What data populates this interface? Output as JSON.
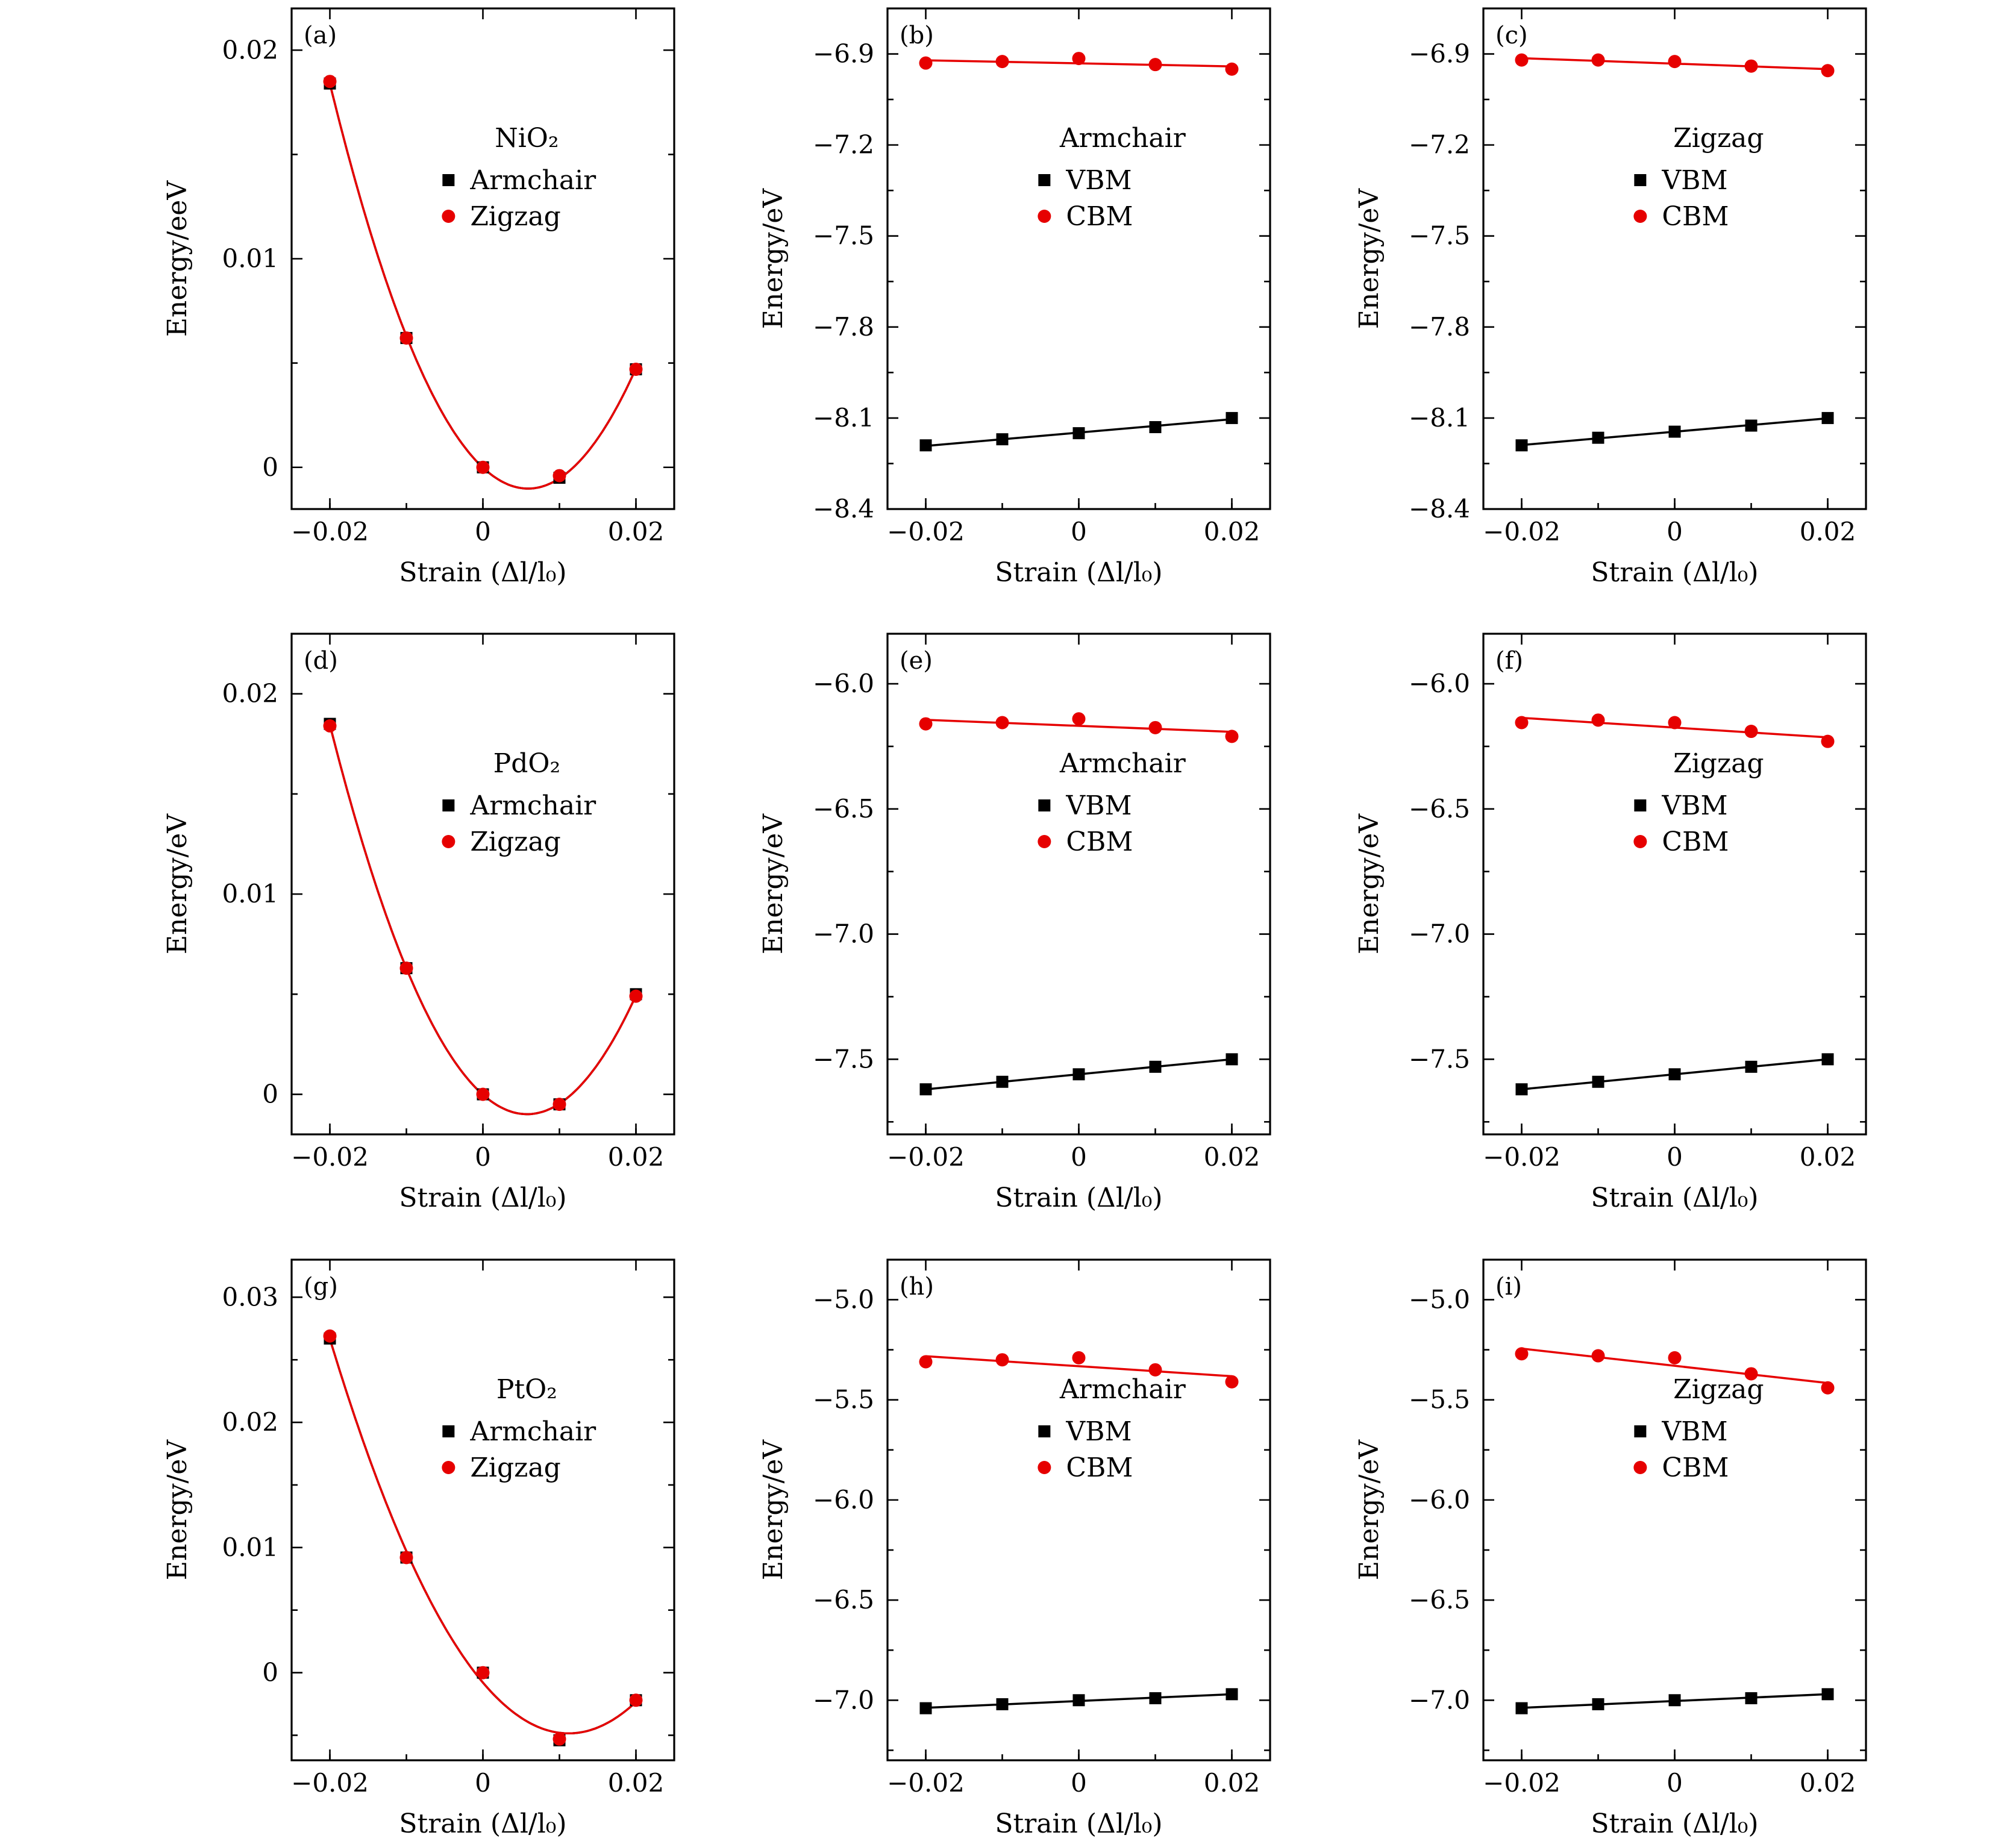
{
  "figure": {
    "x_label": "Strain (Δl/l₀)",
    "colors": {
      "black": "#000000",
      "red": "#e60000"
    }
  },
  "chart_data": [
    {
      "id": "a",
      "panel_label": "(a)",
      "type": "scatter",
      "ylabel": "Energy/eeV",
      "xlabel": "Strain (Δl/l₀)",
      "xlim": [
        -0.025,
        0.025
      ],
      "ylim": [
        -0.002,
        0.022
      ],
      "xticks": [
        -0.02,
        0,
        0.02
      ],
      "xtick_labels": [
        "−0.02",
        "0",
        "0.02"
      ],
      "yticks": [
        0,
        0.01,
        0.02
      ],
      "ytick_labels": [
        "0",
        "0.01",
        "0.02"
      ],
      "legend_title": "NiO₂",
      "series": [
        {
          "name": "Armchair",
          "marker": "square",
          "color": "#000000",
          "x": [
            -0.02,
            -0.01,
            0,
            0.01,
            0.02
          ],
          "y": [
            0.0184,
            0.0062,
            0.0,
            -0.0005,
            0.0047
          ]
        },
        {
          "name": "Zigzag",
          "marker": "circle",
          "color": "#e60000",
          "x": [
            -0.02,
            -0.01,
            0,
            0.01,
            0.02
          ],
          "y": [
            0.0185,
            0.0062,
            0.0,
            -0.0004,
            0.0047
          ]
        }
      ],
      "fit": {
        "kind": "quadratic",
        "color": "#e60000",
        "x": [
          -0.02,
          -0.01,
          0,
          0.01,
          0.02
        ],
        "y": [
          0.01845,
          0.0062,
          0.0,
          -0.00045,
          0.0047
        ]
      }
    },
    {
      "id": "b",
      "panel_label": "(b)",
      "type": "scatter",
      "ylabel": "Energy/eV",
      "xlabel": "Strain (Δl/l₀)",
      "xlim": [
        -0.025,
        0.025
      ],
      "ylim": [
        -8.4,
        -6.75
      ],
      "xticks": [
        -0.02,
        0,
        0.02
      ],
      "xtick_labels": [
        "−0.02",
        "0",
        "0.02"
      ],
      "yticks": [
        -8.4,
        -8.1,
        -7.8,
        -7.5,
        -7.2,
        -6.9
      ],
      "ytick_labels": [
        "−8.4",
        "−8.1",
        "−7.8",
        "−7.5",
        "−7.2",
        "−6.9"
      ],
      "legend_title": "Armchair",
      "series": [
        {
          "name": "VBM",
          "marker": "square",
          "color": "#000000",
          "x": [
            -0.02,
            -0.01,
            0,
            0.01,
            0.02
          ],
          "y": [
            -8.19,
            -8.17,
            -8.15,
            -8.13,
            -8.1
          ]
        },
        {
          "name": "CBM",
          "marker": "circle",
          "color": "#e60000",
          "x": [
            -0.02,
            -0.01,
            0,
            0.01,
            0.02
          ],
          "y": [
            -6.93,
            -6.925,
            -6.915,
            -6.935,
            -6.95
          ]
        }
      ]
    },
    {
      "id": "c",
      "panel_label": "(c)",
      "type": "scatter",
      "ylabel": "Energy/eV",
      "xlabel": "Strain (Δl/l₀)",
      "xlim": [
        -0.025,
        0.025
      ],
      "ylim": [
        -8.4,
        -6.75
      ],
      "xticks": [
        -0.02,
        0,
        0.02
      ],
      "xtick_labels": [
        "−0.02",
        "0",
        "0.02"
      ],
      "yticks": [
        -8.4,
        -8.1,
        -7.8,
        -7.5,
        -7.2,
        -6.9
      ],
      "ytick_labels": [
        "−8.4",
        "−8.1",
        "−7.8",
        "−7.5",
        "−7.2",
        "−6.9"
      ],
      "legend_title": "Zigzag",
      "series": [
        {
          "name": "VBM",
          "marker": "square",
          "color": "#000000",
          "x": [
            -0.02,
            -0.01,
            0,
            0.01,
            0.02
          ],
          "y": [
            -8.19,
            -8.165,
            -8.145,
            -8.125,
            -8.1
          ]
        },
        {
          "name": "CBM",
          "marker": "circle",
          "color": "#e60000",
          "x": [
            -0.02,
            -0.01,
            0,
            0.01,
            0.02
          ],
          "y": [
            -6.92,
            -6.92,
            -6.925,
            -6.94,
            -6.955
          ]
        }
      ]
    },
    {
      "id": "d",
      "panel_label": "(d)",
      "type": "scatter",
      "ylabel": "Energy/eV",
      "xlabel": "Strain (Δl/l₀)",
      "xlim": [
        -0.025,
        0.025
      ],
      "ylim": [
        -0.002,
        0.023
      ],
      "xticks": [
        -0.02,
        0,
        0.02
      ],
      "xtick_labels": [
        "−0.02",
        "0",
        "0.02"
      ],
      "yticks": [
        0,
        0.01,
        0.02
      ],
      "ytick_labels": [
        "0",
        "0.01",
        "0.02"
      ],
      "legend_title": "PdO₂",
      "series": [
        {
          "name": "Armchair",
          "marker": "square",
          "color": "#000000",
          "x": [
            -0.02,
            -0.01,
            0,
            0.01,
            0.02
          ],
          "y": [
            0.0185,
            0.0063,
            0.0,
            -0.0005,
            0.005
          ]
        },
        {
          "name": "Zigzag",
          "marker": "circle",
          "color": "#e60000",
          "x": [
            -0.02,
            -0.01,
            0,
            0.01,
            0.02
          ],
          "y": [
            0.0184,
            0.0063,
            0.0,
            -0.0005,
            0.0049
          ]
        }
      ],
      "fit": {
        "kind": "quadratic",
        "color": "#e60000",
        "x": [
          -0.02,
          -0.01,
          0,
          0.01,
          0.02
        ],
        "y": [
          0.01845,
          0.0063,
          0.0,
          -0.0005,
          0.00495
        ]
      }
    },
    {
      "id": "e",
      "panel_label": "(e)",
      "type": "scatter",
      "ylabel": "Energy/eV",
      "xlabel": "Strain (Δl/l₀)",
      "xlim": [
        -0.025,
        0.025
      ],
      "ylim": [
        -7.8,
        -5.8
      ],
      "xticks": [
        -0.02,
        0,
        0.02
      ],
      "xtick_labels": [
        "−0.02",
        "0",
        "0.02"
      ],
      "yticks": [
        -7.5,
        -7.0,
        -6.5,
        -6.0
      ],
      "ytick_labels": [
        "−7.5",
        "−7.0",
        "−6.5",
        "−6.0"
      ],
      "legend_title": "Armchair",
      "series": [
        {
          "name": "VBM",
          "marker": "square",
          "color": "#000000",
          "x": [
            -0.02,
            -0.01,
            0,
            0.01,
            0.02
          ],
          "y": [
            -7.62,
            -7.59,
            -7.56,
            -7.53,
            -7.5
          ]
        },
        {
          "name": "CBM",
          "marker": "circle",
          "color": "#e60000",
          "x": [
            -0.02,
            -0.01,
            0,
            0.01,
            0.02
          ],
          "y": [
            -6.16,
            -6.155,
            -6.14,
            -6.175,
            -6.21
          ]
        }
      ]
    },
    {
      "id": "f",
      "panel_label": "(f)",
      "type": "scatter",
      "ylabel": "Energy/eV",
      "xlabel": "Strain (Δl/l₀)",
      "xlim": [
        -0.025,
        0.025
      ],
      "ylim": [
        -7.8,
        -5.8
      ],
      "xticks": [
        -0.02,
        0,
        0.02
      ],
      "xtick_labels": [
        "−0.02",
        "0",
        "0.02"
      ],
      "yticks": [
        -7.5,
        -7.0,
        -6.5,
        -6.0
      ],
      "ytick_labels": [
        "−7.5",
        "−7.0",
        "−6.5",
        "−6.0"
      ],
      "legend_title": "Zigzag",
      "series": [
        {
          "name": "VBM",
          "marker": "square",
          "color": "#000000",
          "x": [
            -0.02,
            -0.01,
            0,
            0.01,
            0.02
          ],
          "y": [
            -7.62,
            -7.59,
            -7.56,
            -7.53,
            -7.5
          ]
        },
        {
          "name": "CBM",
          "marker": "circle",
          "color": "#e60000",
          "x": [
            -0.02,
            -0.01,
            0,
            0.01,
            0.02
          ],
          "y": [
            -6.155,
            -6.145,
            -6.155,
            -6.19,
            -6.23
          ]
        }
      ]
    },
    {
      "id": "g",
      "panel_label": "(g)",
      "type": "scatter",
      "ylabel": "Energy/eV",
      "xlabel": "Strain (Δl/l₀)",
      "xlim": [
        -0.025,
        0.025
      ],
      "ylim": [
        -0.007,
        0.033
      ],
      "xticks": [
        -0.02,
        0,
        0.02
      ],
      "xtick_labels": [
        "−0.02",
        "0",
        "0.02"
      ],
      "yticks": [
        0,
        0.01,
        0.02,
        0.03
      ],
      "ytick_labels": [
        "0",
        "0.01",
        "0.02",
        "0.03"
      ],
      "legend_title": "PtO₂",
      "series": [
        {
          "name": "Armchair",
          "marker": "square",
          "color": "#000000",
          "x": [
            -0.02,
            -0.01,
            0,
            0.01,
            0.02
          ],
          "y": [
            0.0267,
            0.0092,
            0.0,
            -0.0054,
            -0.0022
          ]
        },
        {
          "name": "Zigzag",
          "marker": "circle",
          "color": "#e60000",
          "x": [
            -0.02,
            -0.01,
            0,
            0.01,
            0.02
          ],
          "y": [
            0.0269,
            0.0092,
            0.0,
            -0.0053,
            -0.0022
          ]
        }
      ],
      "fit": {
        "kind": "quadratic",
        "color": "#e60000",
        "x": [
          -0.02,
          -0.01,
          0,
          0.01,
          0.02
        ],
        "y": [
          0.0268,
          0.0092,
          0.0,
          -0.00535,
          -0.0022
        ]
      }
    },
    {
      "id": "h",
      "panel_label": "(h)",
      "type": "scatter",
      "ylabel": "Energy/eV",
      "xlabel": "Strain (Δl/l₀)",
      "xlim": [
        -0.025,
        0.025
      ],
      "ylim": [
        -7.3,
        -4.8
      ],
      "xticks": [
        -0.02,
        0,
        0.02
      ],
      "xtick_labels": [
        "−0.02",
        "0",
        "0.02"
      ],
      "yticks": [
        -7.0,
        -6.5,
        -6.0,
        -5.5,
        -5.0
      ],
      "ytick_labels": [
        "−7.0",
        "−6.5",
        "−6.0",
        "−5.5",
        "−5.0"
      ],
      "legend_title": "Armchair",
      "series": [
        {
          "name": "VBM",
          "marker": "square",
          "color": "#000000",
          "x": [
            -0.02,
            -0.01,
            0,
            0.01,
            0.02
          ],
          "y": [
            -7.04,
            -7.02,
            -7.0,
            -6.99,
            -6.97
          ]
        },
        {
          "name": "CBM",
          "marker": "circle",
          "color": "#e60000",
          "x": [
            -0.02,
            -0.01,
            0,
            0.01,
            0.02
          ],
          "y": [
            -5.31,
            -5.3,
            -5.29,
            -5.35,
            -5.41
          ]
        }
      ]
    },
    {
      "id": "i",
      "panel_label": "(i)",
      "type": "scatter",
      "ylabel": "Energy/eV",
      "xlabel": "Strain (Δl/l₀)",
      "xlim": [
        -0.025,
        0.025
      ],
      "ylim": [
        -7.3,
        -4.8
      ],
      "xticks": [
        -0.02,
        0,
        0.02
      ],
      "xtick_labels": [
        "−0.02",
        "0",
        "0.02"
      ],
      "yticks": [
        -7.0,
        -6.5,
        -6.0,
        -5.5,
        -5.0
      ],
      "ytick_labels": [
        "−7.0",
        "−6.5",
        "−6.0",
        "−5.5",
        "−5.0"
      ],
      "legend_title": "Zigzag",
      "series": [
        {
          "name": "VBM",
          "marker": "square",
          "color": "#000000",
          "x": [
            -0.02,
            -0.01,
            0,
            0.01,
            0.02
          ],
          "y": [
            -7.04,
            -7.02,
            -7.0,
            -6.99,
            -6.97
          ]
        },
        {
          "name": "CBM",
          "marker": "circle",
          "color": "#e60000",
          "x": [
            -0.02,
            -0.01,
            0,
            0.01,
            0.02
          ],
          "y": [
            -5.27,
            -5.28,
            -5.29,
            -5.37,
            -5.44
          ]
        }
      ]
    }
  ]
}
